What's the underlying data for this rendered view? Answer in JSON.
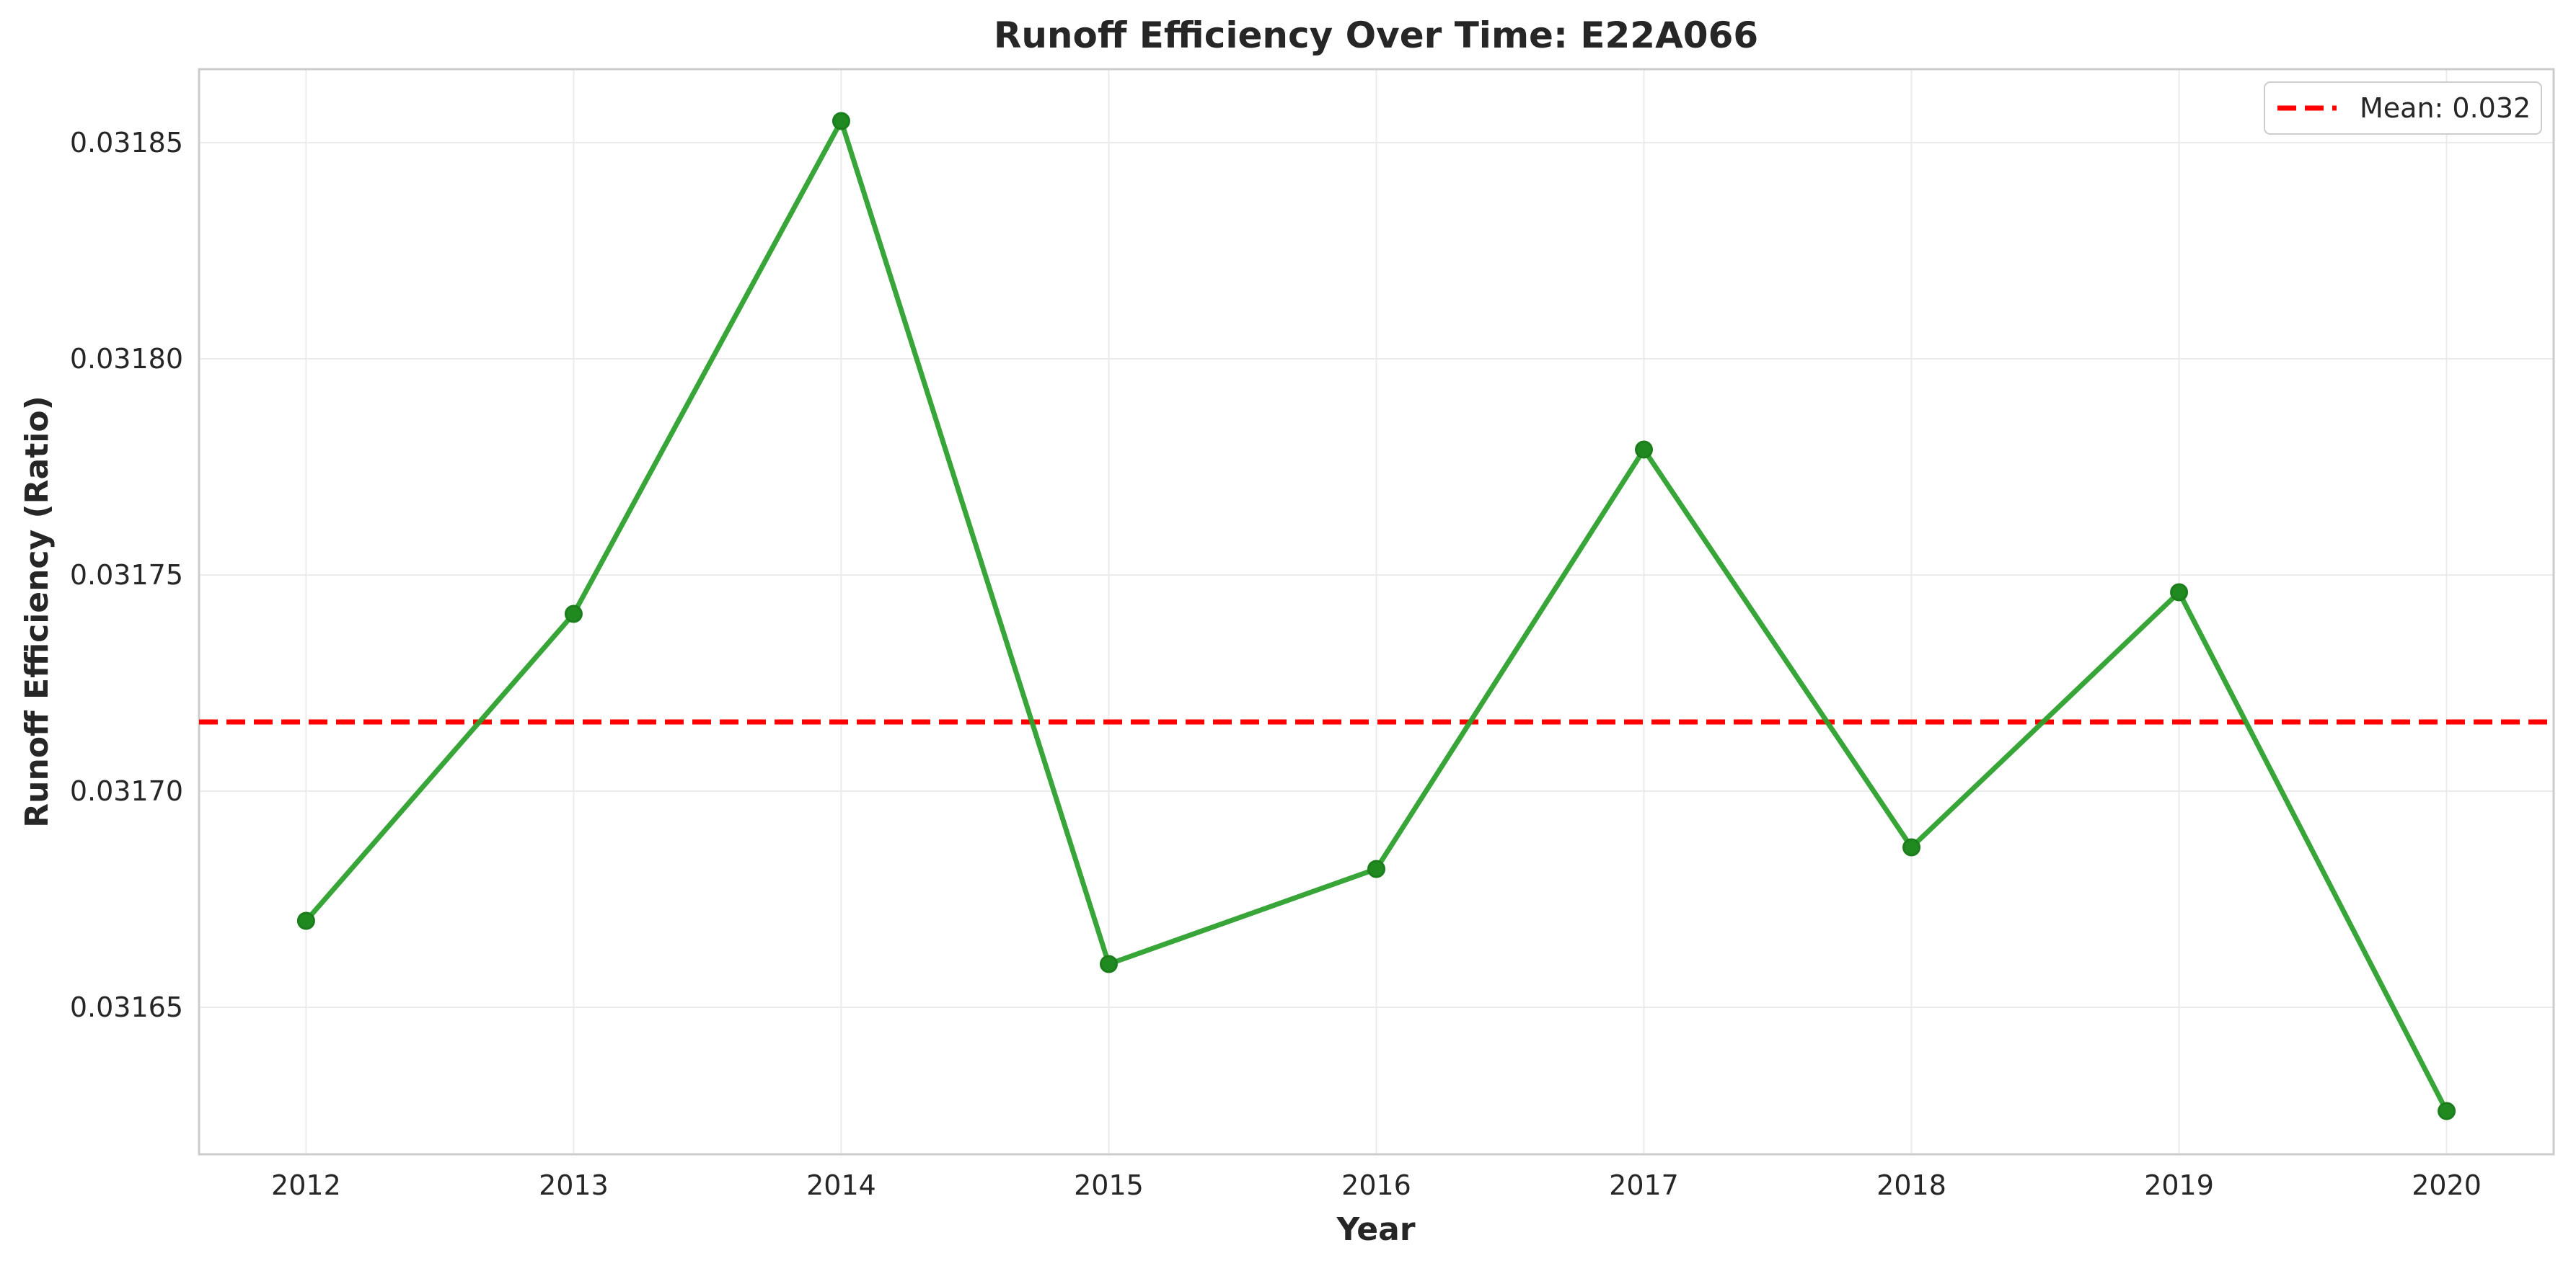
{
  "chart_data": {
    "type": "line",
    "title": "Runoff Efficiency Over Time: E22A066",
    "xlabel": "Year",
    "ylabel": "Runoff Efficiency (Ratio)",
    "x": [
      2012,
      2013,
      2014,
      2015,
      2016,
      2017,
      2018,
      2019,
      2020
    ],
    "series": [
      {
        "values": [
          0.03167,
          0.031741,
          0.031855,
          0.03166,
          0.031682,
          0.031779,
          0.031687,
          0.031746,
          0.031626
        ],
        "color": "#2ca02c",
        "marker": "circle"
      }
    ],
    "reference_lines": [
      {
        "label": "Mean: 0.032",
        "value": 0.031716,
        "color": "#ff0000",
        "style": "dashed"
      }
    ],
    "xticks": [
      "2012",
      "2013",
      "2014",
      "2015",
      "2016",
      "2017",
      "2018",
      "2019",
      "2020"
    ],
    "yticks": [
      "0.03165",
      "0.03170",
      "0.03175",
      "0.03180",
      "0.03185"
    ],
    "ytick_values": [
      0.03165,
      0.0317,
      0.03175,
      0.0318,
      0.03185
    ],
    "xlim": [
      2011.6,
      2020.4
    ],
    "ylim": [
      0.031616,
      0.031867
    ],
    "grid": true,
    "legend_position": "top-right"
  }
}
